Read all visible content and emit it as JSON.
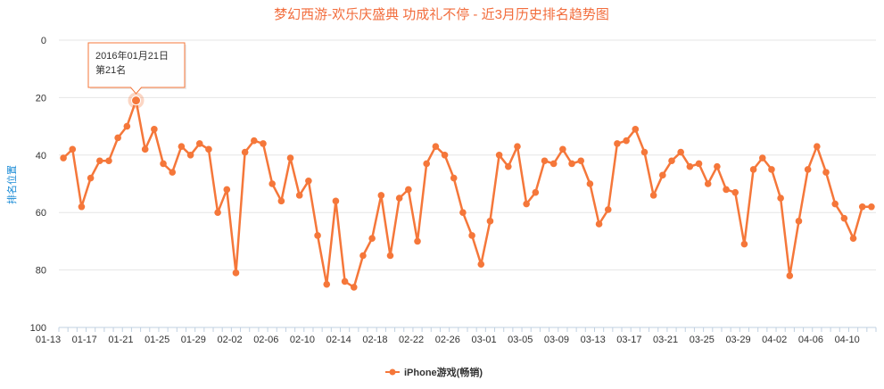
{
  "chart_data": {
    "type": "line",
    "title": "梦幻西游-欢乐庆盛典 功成礼不停 - 近3月历史排名趋势图",
    "ylabel": "排名位置",
    "xlabel": "",
    "y_reversed": true,
    "ylim": [
      0,
      100
    ],
    "y_ticks": [
      "0",
      "20",
      "40",
      "60",
      "80",
      "100"
    ],
    "x_ticks": [
      "01-13",
      "01-17",
      "01-21",
      "01-25",
      "01-29",
      "02-02",
      "02-06",
      "02-10",
      "02-14",
      "02-18",
      "02-22",
      "02-26",
      "03-01",
      "03-05",
      "03-09",
      "03-13",
      "03-17",
      "03-21",
      "03-25",
      "03-29",
      "04-02",
      "04-06",
      "04-10"
    ],
    "series": [
      {
        "name": "iPhone游戏(畅销)",
        "color": "#f5773a",
        "values": [
          41,
          38,
          58,
          48,
          42,
          42,
          34,
          30,
          21,
          38,
          31,
          43,
          46,
          37,
          40,
          36,
          38,
          60,
          52,
          81,
          39,
          35,
          36,
          50,
          56,
          41,
          54,
          49,
          68,
          85,
          56,
          84,
          86,
          75,
          69,
          54,
          75,
          55,
          52,
          70,
          43,
          37,
          40,
          48,
          60,
          68,
          78,
          63,
          40,
          44,
          37,
          57,
          53,
          42,
          43,
          38,
          43,
          42,
          50,
          64,
          59,
          36,
          35,
          31,
          39,
          54,
          47,
          42,
          39,
          44,
          43,
          50,
          44,
          52,
          53,
          71,
          45,
          41,
          45,
          55,
          82,
          63,
          45,
          37,
          46,
          57,
          62,
          69,
          58,
          58
        ]
      }
    ],
    "tooltip": {
      "date": "2016年01月21日",
      "rank": "第21名",
      "point_index": 8
    },
    "grid": true,
    "legend_position": "bottom-center"
  }
}
